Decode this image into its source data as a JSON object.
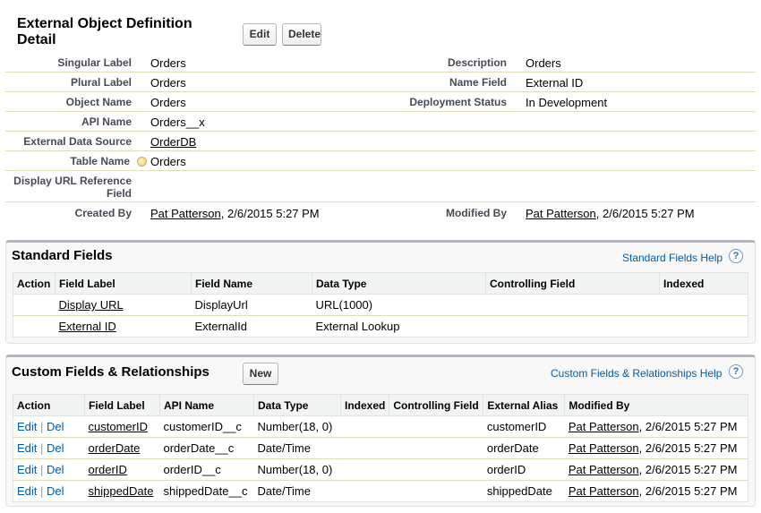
{
  "header": {
    "title": "External Object Definition Detail",
    "edit_label": "Edit",
    "delete_label": "Delete"
  },
  "detail": {
    "singular_label": {
      "label": "Singular Label",
      "value": "Orders"
    },
    "description": {
      "label": "Description",
      "value": "Orders"
    },
    "plural_label": {
      "label": "Plural Label",
      "value": "Orders"
    },
    "name_field": {
      "label": "Name Field",
      "value": "External ID"
    },
    "object_name": {
      "label": "Object Name",
      "value": "Orders"
    },
    "deployment_status": {
      "label": "Deployment Status",
      "value": "In Development"
    },
    "api_name": {
      "label": "API Name",
      "value": "Orders__x"
    },
    "external_data_source": {
      "label": "External Data Source",
      "value": "OrderDB"
    },
    "table_name": {
      "label": "Table Name",
      "value": "Orders"
    },
    "display_url_ref": {
      "label": "Display URL Reference Field",
      "value": ""
    },
    "created_by": {
      "label": "Created By",
      "user": "Pat Patterson",
      "date": ", 2/6/2015 5:27 PM"
    },
    "modified_by": {
      "label": "Modified By",
      "user": "Pat Patterson",
      "date": ", 2/6/2015 5:27 PM"
    }
  },
  "standard_fields": {
    "title": "Standard Fields",
    "help_label": "Standard Fields Help",
    "help_icon": "?",
    "columns": [
      "Action",
      "Field Label",
      "Field Name",
      "Data Type",
      "Controlling Field",
      "Indexed"
    ],
    "rows": [
      {
        "action": "",
        "label": "Display URL",
        "name": "DisplayUrl",
        "type": "URL(1000)",
        "controlling": "",
        "indexed": ""
      },
      {
        "action": "",
        "label": "External ID",
        "name": "ExternalId",
        "type": "External Lookup",
        "controlling": "",
        "indexed": ""
      }
    ]
  },
  "custom_fields": {
    "title": "Custom Fields & Relationships",
    "new_label": "New",
    "help_label": "Custom Fields & Relationships Help",
    "help_icon": "?",
    "columns": [
      "Action",
      "Field Label",
      "API Name",
      "Data Type",
      "Indexed",
      "Controlling Field",
      "External Alias",
      "Modified By"
    ],
    "edit_label": "Edit",
    "del_label": "Del",
    "sep": "|",
    "rows": [
      {
        "label": "customerID",
        "api": "customerID__c",
        "type": "Number(18, 0)",
        "indexed": "",
        "controlling": "",
        "alias": "customerID",
        "user": "Pat Patterson",
        "date": ", 2/6/2015 5:27 PM"
      },
      {
        "label": "orderDate",
        "api": "orderDate__c",
        "type": "Date/Time",
        "indexed": "",
        "controlling": "",
        "alias": "orderDate",
        "user": "Pat Patterson",
        "date": ", 2/6/2015 5:27 PM"
      },
      {
        "label": "orderID",
        "api": "orderID__c",
        "type": "Number(18, 0)",
        "indexed": "",
        "controlling": "",
        "alias": "orderID",
        "user": "Pat Patterson",
        "date": ", 2/6/2015 5:27 PM"
      },
      {
        "label": "shippedDate",
        "api": "shippedDate__c",
        "type": "Date/Time",
        "indexed": "",
        "controlling": "",
        "alias": "shippedDate",
        "user": "Pat Patterson",
        "date": ", 2/6/2015 5:27 PM"
      }
    ]
  }
}
